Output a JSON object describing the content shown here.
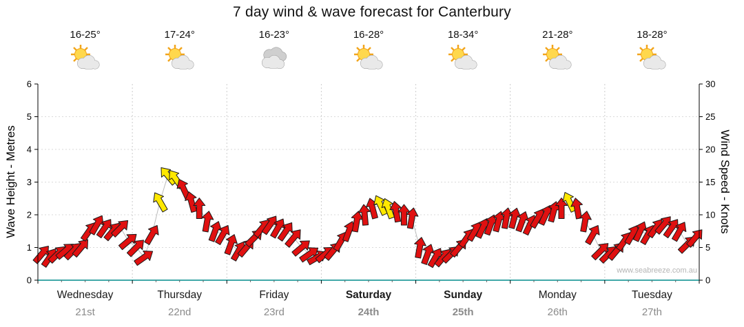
{
  "title": "7 day wind & wave forecast for Canterbury",
  "watermark": "www.seabreeze.com.au",
  "colors": {
    "arrow_red": "#e01010",
    "arrow_yellow": "#ffe800",
    "arrow_outline": "#1a1a1a",
    "axis_black": "#000000",
    "x_axis_teal": "#008b8b",
    "grid": "#d9d9d9",
    "day_separator": "#cccccc",
    "date_gray": "#8a8a8a",
    "trend_line": "#bbbbbb"
  },
  "y_left": {
    "label": "Wave Height - Metres",
    "min": 0,
    "max": 6,
    "ticks": [
      0,
      1,
      2,
      3,
      4,
      5,
      6
    ]
  },
  "y_right": {
    "label": "Wind Speed - Knots",
    "min": 0,
    "max": 30,
    "ticks": [
      0,
      5,
      10,
      15,
      20,
      25,
      30
    ]
  },
  "days": [
    {
      "name": "Wednesday",
      "date": "21st",
      "temp": "16-25°",
      "icon": "sun-cloud",
      "bold": false
    },
    {
      "name": "Thursday",
      "date": "22nd",
      "temp": "17-24°",
      "icon": "sun-cloud",
      "bold": false
    },
    {
      "name": "Friday",
      "date": "23rd",
      "temp": "16-23°",
      "icon": "cloudy",
      "bold": false
    },
    {
      "name": "Saturday",
      "date": "24th",
      "temp": "16-28°",
      "icon": "sun-cloud",
      "bold": true
    },
    {
      "name": "Sunday",
      "date": "25th",
      "temp": "18-34°",
      "icon": "sun-cloud",
      "bold": true
    },
    {
      "name": "Monday",
      "date": "26th",
      "temp": "21-28°",
      "icon": "sun-cloud",
      "bold": false
    },
    {
      "name": "Tuesday",
      "date": "27th",
      "temp": "18-28°",
      "icon": "sun-cloud",
      "bold": false
    }
  ],
  "chart_data": {
    "type": "wind-arrows",
    "title": "7 day wind & wave forecast for Canterbury",
    "ylabel_left": "Wave Height - Metres",
    "ylabel_right": "Wind Speed - Knots",
    "ylim_metres": [
      0,
      6
    ],
    "ylim_knots": [
      0,
      30
    ],
    "knots_per_metre": 5,
    "points_per_day": 12,
    "point_format": [
      "wind_speed_knots",
      "direction_deg_cw_from_up",
      "color(r=red,y=yellow)"
    ],
    "points_by_day": [
      [
        [
          4,
          40,
          "r"
        ],
        [
          3.5,
          35,
          "r"
        ],
        [
          4,
          45,
          "r"
        ],
        [
          4.5,
          50,
          "r"
        ],
        [
          4.5,
          45,
          "r"
        ],
        [
          5,
          40,
          "r"
        ],
        [
          7.5,
          35,
          "r"
        ],
        [
          8.5,
          30,
          "r"
        ],
        [
          8,
          35,
          "r"
        ],
        [
          7.5,
          40,
          "r"
        ],
        [
          8,
          45,
          "r"
        ],
        [
          6,
          50,
          "r"
        ]
      ],
      [
        [
          5,
          45,
          "r"
        ],
        [
          3.5,
          55,
          "r"
        ],
        [
          7,
          30,
          "r"
        ],
        [
          12,
          -30,
          "y"
        ],
        [
          16,
          -40,
          "y"
        ],
        [
          15.5,
          -35,
          "y"
        ],
        [
          14,
          -25,
          "r"
        ],
        [
          12,
          -15,
          "r"
        ],
        [
          11,
          0,
          "r"
        ],
        [
          9,
          10,
          "r"
        ],
        [
          7.5,
          20,
          "r"
        ],
        [
          7,
          30,
          "r"
        ]
      ],
      [
        [
          5.5,
          20,
          "r"
        ],
        [
          4.5,
          30,
          "r"
        ],
        [
          5,
          40,
          "r"
        ],
        [
          6.5,
          45,
          "r"
        ],
        [
          8,
          40,
          "r"
        ],
        [
          8.5,
          35,
          "r"
        ],
        [
          8,
          30,
          "r"
        ],
        [
          7.5,
          35,
          "r"
        ],
        [
          6.5,
          40,
          "r"
        ],
        [
          5,
          50,
          "r"
        ],
        [
          4,
          55,
          "r"
        ],
        [
          3.5,
          60,
          "r"
        ]
      ],
      [
        [
          4,
          50,
          "r"
        ],
        [
          4.5,
          40,
          "r"
        ],
        [
          6,
          30,
          "r"
        ],
        [
          7.5,
          20,
          "r"
        ],
        [
          9,
          10,
          "r"
        ],
        [
          10,
          -5,
          "r"
        ],
        [
          11,
          -15,
          "r"
        ],
        [
          11.5,
          -25,
          "y"
        ],
        [
          11,
          -20,
          "y"
        ],
        [
          10.5,
          -10,
          "r"
        ],
        [
          10,
          0,
          "r"
        ],
        [
          9.5,
          10,
          "r"
        ]
      ],
      [
        [
          5,
          10,
          "r"
        ],
        [
          4,
          20,
          "r"
        ],
        [
          3.5,
          30,
          "r"
        ],
        [
          3.5,
          40,
          "r"
        ],
        [
          4,
          45,
          "r"
        ],
        [
          5,
          40,
          "r"
        ],
        [
          6.5,
          35,
          "r"
        ],
        [
          7.5,
          30,
          "r"
        ],
        [
          8,
          25,
          "r"
        ],
        [
          8.5,
          20,
          "r"
        ],
        [
          9,
          15,
          "r"
        ],
        [
          9.5,
          10,
          "r"
        ]
      ],
      [
        [
          9.5,
          15,
          "r"
        ],
        [
          9,
          20,
          "r"
        ],
        [
          8.5,
          25,
          "r"
        ],
        [
          9.5,
          30,
          "r"
        ],
        [
          10,
          25,
          "r"
        ],
        [
          10.5,
          15,
          "r"
        ],
        [
          11,
          0,
          "r"
        ],
        [
          12,
          -25,
          "y"
        ],
        [
          11,
          -10,
          "r"
        ],
        [
          9,
          10,
          "r"
        ],
        [
          7,
          30,
          "r"
        ],
        [
          4.5,
          45,
          "r"
        ]
      ],
      [
        [
          4,
          45,
          "r"
        ],
        [
          4.5,
          40,
          "r"
        ],
        [
          6,
          35,
          "r"
        ],
        [
          7,
          30,
          "r"
        ],
        [
          7.5,
          25,
          "r"
        ],
        [
          7,
          30,
          "r"
        ],
        [
          8,
          35,
          "r"
        ],
        [
          8.5,
          40,
          "r"
        ],
        [
          8,
          35,
          "r"
        ],
        [
          7.5,
          30,
          "r"
        ],
        [
          5.5,
          45,
          "r"
        ],
        [
          6.5,
          40,
          "r"
        ]
      ]
    ]
  }
}
